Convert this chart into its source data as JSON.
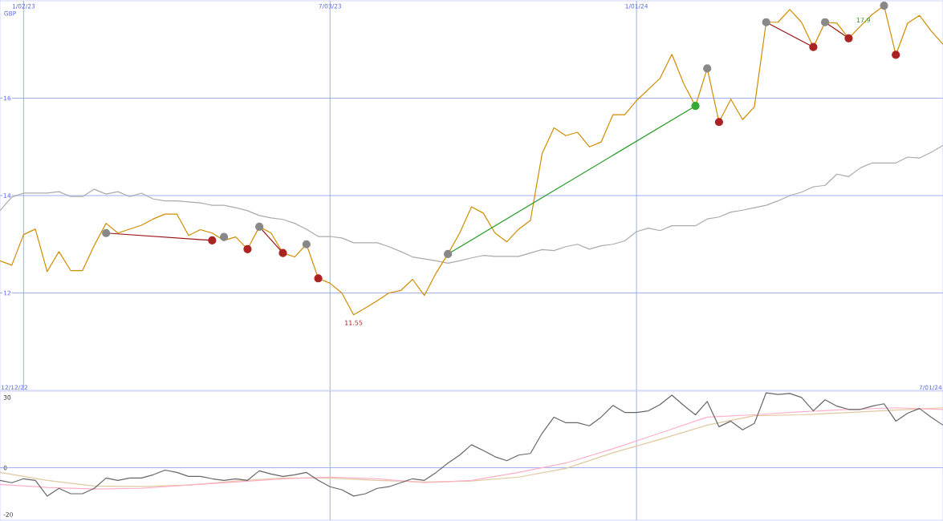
{
  "chart_data": [
    {
      "type": "line",
      "ylabel": "GBP",
      "x": [
        "2022-12-19",
        "2022-12-26",
        "2023-01-02",
        "2023-01-09",
        "2023-01-16",
        "2023-01-23",
        "2023-01-30",
        "2023-02-06",
        "2023-02-13",
        "2023-02-20",
        "2023-02-27",
        "2023-03-06",
        "2023-03-13",
        "2023-03-20",
        "2023-03-27",
        "2023-04-03",
        "2023-04-10",
        "2023-04-17",
        "2023-04-24",
        "2023-05-01",
        "2023-05-08",
        "2023-05-15",
        "2023-05-22",
        "2023-05-29",
        "2023-06-05",
        "2023-06-12",
        "2023-06-19",
        "2023-06-26",
        "2023-07-03",
        "2023-07-10",
        "2023-07-17",
        "2023-07-24",
        "2023-07-31",
        "2023-08-07",
        "2023-08-14",
        "2023-08-21",
        "2023-08-28",
        "2023-09-04",
        "2023-09-11",
        "2023-09-18",
        "2023-09-25",
        "2023-10-02",
        "2023-10-09",
        "2023-10-16",
        "2023-10-23",
        "2023-10-30",
        "2023-11-06",
        "2023-11-13",
        "2023-11-20",
        "2023-11-27",
        "2023-12-04",
        "2023-12-11",
        "2023-12-18",
        "2023-12-25",
        "2024-01-01",
        "2024-01-08",
        "2024-01-15",
        "2024-01-22",
        "2024-01-29",
        "2024-02-05",
        "2024-02-12",
        "2024-02-19",
        "2024-02-26",
        "2024-03-04",
        "2024-03-11",
        "2024-03-18",
        "2024-03-25",
        "2024-04-01",
        "2024-04-08",
        "2024-04-15",
        "2024-04-22",
        "2024-04-29",
        "2024-05-06",
        "2024-05-13",
        "2024-05-20",
        "2024-05-27",
        "2024-06-03",
        "2024-06-10",
        "2024-06-17",
        "2024-06-24",
        "2024-07-01"
      ],
      "xlim": [
        "2022-12-19",
        "2024-07-01"
      ],
      "ylim": [
        10,
        18
      ],
      "xticks": [
        {
          "value": "2023-01-02",
          "label": "1/02/23"
        },
        {
          "value": "2023-07-03",
          "label": "7/03/23"
        },
        {
          "value": "2024-01-01",
          "label": "1/01/24"
        }
      ],
      "yticks": [
        12,
        14,
        16
      ],
      "grid": true,
      "annotations": [
        {
          "text": "11.55",
          "x": "2023-07-17",
          "y": 11.55
        },
        {
          "text": "17.9",
          "x": "2024-05-27",
          "y": 17.9
        }
      ],
      "series": [
        {
          "color": "#aaaaaa",
          "values": [
            13.69,
            13.97,
            14.05,
            14.05,
            14.05,
            14.08,
            13.98,
            13.98,
            14.13,
            14.03,
            14.08,
            13.98,
            14.05,
            13.93,
            13.89,
            13.89,
            13.87,
            13.85,
            13.8,
            13.8,
            13.75,
            13.69,
            13.59,
            13.54,
            13.51,
            13.43,
            13.31,
            13.16,
            13.16,
            13.13,
            13.03,
            13.03,
            13.03,
            12.95,
            12.85,
            12.74,
            12.7,
            12.66,
            12.61,
            12.66,
            12.72,
            12.77,
            12.75,
            12.75,
            12.75,
            12.82,
            12.89,
            12.87,
            12.95,
            13.0,
            12.9,
            12.97,
            13.0,
            13.07,
            13.26,
            13.33,
            13.28,
            13.38,
            13.38,
            13.38,
            13.52,
            13.56,
            13.66,
            13.7,
            13.75,
            13.8,
            13.89,
            14.0,
            14.07,
            14.18,
            14.21,
            14.44,
            14.39,
            14.57,
            14.67,
            14.67,
            14.67,
            14.79,
            14.77,
            14.89,
            15.03
          ]
        },
        {
          "color": "#d08c00",
          "values": [
            12.66,
            12.57,
            13.2,
            13.31,
            12.44,
            12.85,
            12.46,
            12.46,
            12.98,
            13.43,
            13.23,
            13.31,
            13.39,
            13.52,
            13.62,
            13.62,
            13.18,
            13.3,
            13.23,
            13.08,
            13.15,
            12.9,
            13.36,
            13.23,
            12.82,
            12.74,
            13.0,
            12.3,
            12.2,
            12.0,
            11.55,
            11.69,
            11.84,
            12.0,
            12.05,
            12.28,
            11.95,
            12.41,
            12.8,
            13.23,
            13.77,
            13.64,
            13.23,
            13.05,
            13.31,
            13.49,
            14.87,
            15.39,
            15.23,
            15.3,
            15.0,
            15.1,
            15.66,
            15.66,
            15.95,
            16.18,
            16.41,
            16.9,
            16.3,
            15.84,
            16.61,
            15.51,
            15.98,
            15.56,
            15.82,
            17.56,
            17.56,
            17.82,
            17.56,
            17.05,
            17.56,
            17.54,
            17.23,
            17.48,
            17.72,
            17.9,
            16.89,
            17.54,
            17.7,
            17.38,
            17.11
          ]
        },
        {
          "color": "#229922",
          "x": [
            "2023-09-11",
            "2024-02-05"
          ],
          "values": [
            12.8,
            15.84
          ]
        },
        {
          "color": "#991111",
          "x": [
            "2023-02-20",
            "2023-04-24"
          ],
          "values": [
            13.23,
            13.08
          ]
        },
        {
          "color": "#991111",
          "x": [
            "2023-05-22",
            "2023-06-05"
          ],
          "values": [
            13.36,
            12.82
          ]
        },
        {
          "color": "#991111",
          "x": [
            "2024-03-18",
            "2024-04-15"
          ],
          "values": [
            17.56,
            17.05
          ]
        },
        {
          "color": "#991111",
          "x": [
            "2024-04-22",
            "2024-05-06"
          ],
          "values": [
            17.56,
            17.23
          ]
        },
        {
          "type": "scatter",
          "marker": "circle",
          "color": "#888888",
          "x": [
            "2023-02-20",
            "2023-05-01",
            "2023-05-22",
            "2023-06-19",
            "2023-09-11",
            "2024-02-12",
            "2024-03-18",
            "2024-04-22",
            "2024-05-27"
          ],
          "values": [
            13.23,
            13.15,
            13.36,
            13.0,
            12.8,
            16.61,
            17.56,
            17.56,
            17.9
          ]
        },
        {
          "type": "scatter",
          "marker": "circle",
          "color": "#aa2222",
          "x": [
            "2023-04-24",
            "2023-05-15",
            "2023-06-05",
            "2023-06-26",
            "2024-02-19",
            "2024-04-15",
            "2024-05-06",
            "2024-06-03"
          ],
          "values": [
            13.08,
            12.9,
            12.82,
            12.3,
            15.51,
            17.05,
            17.23,
            16.89
          ]
        },
        {
          "type": "scatter",
          "marker": "circle",
          "color": "#33aa33",
          "x": [
            "2024-02-05"
          ],
          "values": [
            15.84
          ]
        }
      ]
    },
    {
      "type": "line",
      "x": [
        "2022-12-19",
        "2022-12-26",
        "2023-01-02",
        "2023-01-09",
        "2023-01-16",
        "2023-01-23",
        "2023-01-30",
        "2023-02-06",
        "2023-02-13",
        "2023-02-20",
        "2023-02-27",
        "2023-03-06",
        "2023-03-13",
        "2023-03-20",
        "2023-03-27",
        "2023-04-03",
        "2023-04-10",
        "2023-04-17",
        "2023-04-24",
        "2023-05-01",
        "2023-05-08",
        "2023-05-15",
        "2023-05-22",
        "2023-05-29",
        "2023-06-05",
        "2023-06-12",
        "2023-06-19",
        "2023-06-26",
        "2023-07-03",
        "2023-07-10",
        "2023-07-17",
        "2023-07-24",
        "2023-07-31",
        "2023-08-07",
        "2023-08-14",
        "2023-08-21",
        "2023-08-28",
        "2023-09-04",
        "2023-09-11",
        "2023-09-18",
        "2023-09-25",
        "2023-10-02",
        "2023-10-09",
        "2023-10-16",
        "2023-10-23",
        "2023-10-30",
        "2023-11-06",
        "2023-11-13",
        "2023-11-20",
        "2023-11-27",
        "2023-12-04",
        "2023-12-11",
        "2023-12-18",
        "2023-12-25",
        "2024-01-01",
        "2024-01-08",
        "2024-01-15",
        "2024-01-22",
        "2024-01-29",
        "2024-02-05",
        "2024-02-12",
        "2024-02-19",
        "2024-02-26",
        "2024-03-04",
        "2024-03-11",
        "2024-03-18",
        "2024-03-25",
        "2024-04-01",
        "2024-04-08",
        "2024-04-15",
        "2024-04-22",
        "2024-04-29",
        "2024-05-06",
        "2024-05-13",
        "2024-05-20",
        "2024-05-27",
        "2024-06-03",
        "2024-06-10",
        "2024-06-17",
        "2024-06-24",
        "2024-07-01"
      ],
      "xlim": [
        "2022-12-19",
        "2024-07-01"
      ],
      "ylim": [
        -22.4,
        32.7
      ],
      "xticks": [
        {
          "value": "2023-07-03",
          "label": null
        },
        {
          "value": "2024-01-01",
          "label": null
        }
      ],
      "yticks": [
        -20,
        0,
        30
      ],
      "grid": "x",
      "tick_labels": "y",
      "annotations": [
        "12/12/22",
        "7/01/24"
      ],
      "ref_lines": [
        {
          "axis": "y",
          "value": 0,
          "color": "#8899ee"
        }
      ],
      "series": [
        {
          "color": "#e0c8a0",
          "x": [
            "2022-12-19",
            "2023-01-16",
            "2023-02-13",
            "2023-03-13",
            "2023-04-10",
            "2023-05-08",
            "2023-06-05",
            "2023-07-03",
            "2023-07-31",
            "2023-08-28",
            "2023-09-25",
            "2023-10-23",
            "2023-11-20",
            "2023-12-18",
            "2024-01-15",
            "2024-02-12",
            "2024-03-11",
            "2024-04-08",
            "2024-05-06",
            "2024-06-03",
            "2024-07-01"
          ],
          "values": [
            -2.0,
            -5.4,
            -7.8,
            -8.1,
            -7.4,
            -5.7,
            -4.4,
            -4.4,
            -5.4,
            -6.1,
            -5.7,
            -4.0,
            -0.3,
            6.4,
            12.1,
            18.2,
            22.2,
            22.6,
            23.6,
            24.6,
            25.6
          ]
        },
        {
          "color": "#ffb0c8",
          "x": [
            "2022-12-19",
            "2023-01-16",
            "2023-02-13",
            "2023-03-13",
            "2023-04-10",
            "2023-05-08",
            "2023-06-05",
            "2023-07-03",
            "2023-07-31",
            "2023-08-28",
            "2023-09-25",
            "2023-10-23",
            "2023-11-20",
            "2023-12-18",
            "2024-01-15",
            "2024-02-12",
            "2024-03-11",
            "2024-04-08",
            "2024-05-06",
            "2024-06-03",
            "2024-07-01"
          ],
          "values": [
            -7.1,
            -8.4,
            -9.1,
            -8.8,
            -7.4,
            -6.1,
            -4.7,
            -4.0,
            -4.7,
            -6.4,
            -5.4,
            -2.0,
            2.0,
            8.1,
            14.8,
            21.6,
            22.6,
            23.9,
            24.9,
            25.6,
            24.9
          ]
        },
        {
          "color": "#666666",
          "values": [
            -5.4,
            -6.4,
            -4.7,
            -5.4,
            -12.1,
            -8.8,
            -11.1,
            -11.1,
            -8.8,
            -4.4,
            -5.4,
            -4.4,
            -4.4,
            -3.0,
            -1.0,
            -2.0,
            -3.7,
            -3.7,
            -4.7,
            -5.4,
            -4.7,
            -5.4,
            -1.3,
            -2.7,
            -3.7,
            -3.0,
            -2.0,
            -5.4,
            -8.1,
            -9.4,
            -12.1,
            -11.1,
            -8.8,
            -8.1,
            -6.4,
            -4.7,
            -5.4,
            -2.0,
            2.0,
            5.4,
            9.8,
            7.4,
            4.7,
            3.0,
            5.4,
            6.1,
            14.8,
            21.6,
            19.2,
            19.2,
            17.9,
            21.6,
            26.6,
            23.6,
            23.6,
            24.3,
            27.0,
            31.0,
            26.6,
            22.6,
            28.3,
            17.5,
            19.9,
            16.2,
            18.9,
            32.0,
            31.3,
            31.7,
            30.0,
            24.3,
            29.0,
            26.3,
            24.9,
            24.9,
            26.3,
            27.3,
            19.9,
            23.3,
            25.3,
            21.6,
            18.2
          ]
        }
      ]
    }
  ]
}
